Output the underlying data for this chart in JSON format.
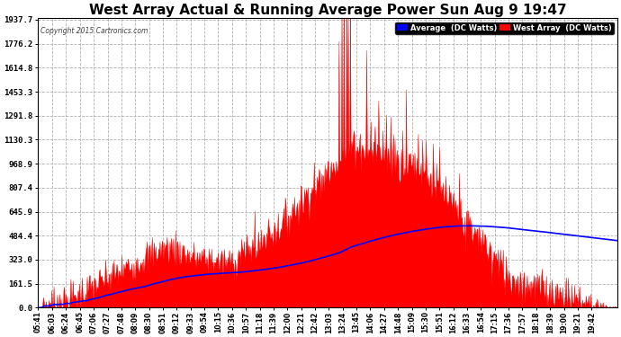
{
  "title": "West Array Actual & Running Average Power Sun Aug 9 19:47",
  "copyright": "Copyright 2015 Cartronics.com",
  "legend_avg": "Average  (DC Watts)",
  "legend_west": "West Array  (DC Watts)",
  "yticks": [
    0.0,
    161.5,
    323.0,
    484.4,
    645.9,
    807.4,
    968.9,
    1130.3,
    1291.8,
    1453.3,
    1614.8,
    1776.2,
    1937.7
  ],
  "ymax": 1937.7,
  "ymin": 0.0,
  "bg_color": "#ffffff",
  "plot_bg_color": "#ffffff",
  "grid_color": "#b0b0b0",
  "fill_color": "#ff0000",
  "avg_line_color": "#0000ff",
  "title_color": "#000000",
  "title_fontsize": 11,
  "xtick_labels": [
    "05:41",
    "06:03",
    "06:24",
    "06:45",
    "07:06",
    "07:27",
    "07:48",
    "08:09",
    "08:30",
    "08:51",
    "09:12",
    "09:33",
    "09:54",
    "10:15",
    "10:36",
    "10:57",
    "11:18",
    "11:39",
    "12:00",
    "12:21",
    "12:42",
    "13:03",
    "13:24",
    "13:45",
    "14:06",
    "14:27",
    "14:48",
    "15:09",
    "15:30",
    "15:51",
    "16:12",
    "16:33",
    "16:54",
    "17:15",
    "17:36",
    "17:57",
    "18:18",
    "18:39",
    "19:00",
    "19:21",
    "19:42"
  ]
}
